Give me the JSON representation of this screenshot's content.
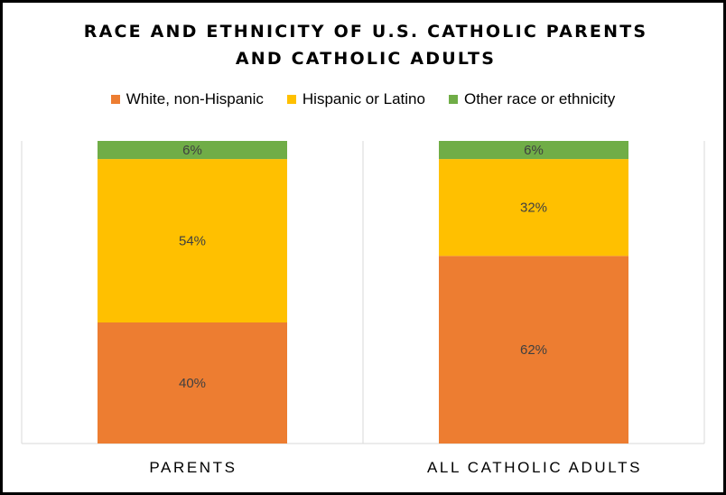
{
  "colors": {
    "white_non_hispanic": "#ED7D31",
    "hispanic_or_latino": "#FFC000",
    "other": "#70AD47",
    "grid": "#D9D9D9",
    "label_text": "#404040"
  },
  "chart_data": {
    "type": "bar",
    "stacked": true,
    "normalized_percent": true,
    "title": "RACE AND ETHNICITY OF U.S. CATHOLIC PARENTS AND CATHOLIC ADULTS",
    "title_lines": [
      "RACE AND ETHNICITY OF U.S. CATHOLIC PARENTS",
      "AND CATHOLIC ADULTS"
    ],
    "categories": [
      "PARENTS",
      "ALL CATHOLIC ADULTS"
    ],
    "series": [
      {
        "name": "White, non-Hispanic",
        "values": [
          40,
          62
        ],
        "color": "#ED7D31"
      },
      {
        "name": "Hispanic or Latino",
        "values": [
          54,
          32
        ],
        "color": "#FFC000"
      },
      {
        "name": "Other race or ethnicity",
        "values": [
          6,
          6
        ],
        "color": "#70AD47"
      }
    ],
    "data_labels": [
      [
        "40%",
        "62%"
      ],
      [
        "54%",
        "32%"
      ],
      [
        "6%",
        "6%"
      ]
    ],
    "ylim": [
      0,
      100
    ],
    "legend_position": "top",
    "grid": false
  }
}
